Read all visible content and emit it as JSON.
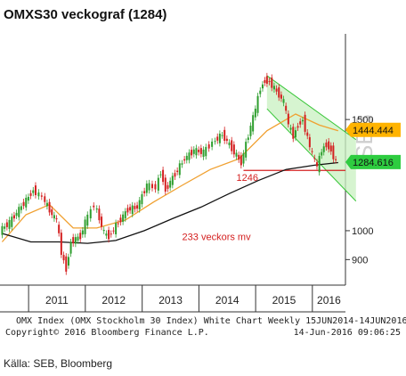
{
  "title": "OMXS30 veckograf (1284)",
  "source": "Källa: SEB, Bloomberg",
  "chart_data": {
    "type": "line",
    "series_name": "OMXS30",
    "x_tick_labels": [
      "2011",
      "2012",
      "2013",
      "2014",
      "2015",
      "2016"
    ],
    "y_tick_labels": [
      "900",
      "1000",
      "1500"
    ],
    "y_scale": "log",
    "ylim": [
      820,
      2050
    ],
    "grid": false,
    "price": [
      [
        "2010-07",
        1000
      ],
      [
        "2010-09",
        1030
      ],
      [
        "2010-11",
        1080
      ],
      [
        "2011-01",
        1130
      ],
      [
        "2011-02",
        1160
      ],
      [
        "2011-04",
        1130
      ],
      [
        "2011-06",
        1060
      ],
      [
        "2011-07",
        1040
      ],
      [
        "2011-08",
        920
      ],
      [
        "2011-09",
        870
      ],
      [
        "2011-10",
        960
      ],
      [
        "2011-12",
        980
      ],
      [
        "2012-01",
        1030
      ],
      [
        "2012-03",
        1100
      ],
      [
        "2012-05",
        990
      ],
      [
        "2012-06",
        980
      ],
      [
        "2012-08",
        1030
      ],
      [
        "2012-10",
        1080
      ],
      [
        "2012-12",
        1090
      ],
      [
        "2013-02",
        1180
      ],
      [
        "2013-04",
        1170
      ],
      [
        "2013-05",
        1240
      ],
      [
        "2013-06",
        1160
      ],
      [
        "2013-08",
        1230
      ],
      [
        "2013-10",
        1300
      ],
      [
        "2013-12",
        1340
      ],
      [
        "2014-02",
        1330
      ],
      [
        "2014-04",
        1380
      ],
      [
        "2014-06",
        1420
      ],
      [
        "2014-08",
        1350
      ],
      [
        "2014-10",
        1280
      ],
      [
        "2014-12",
        1460
      ],
      [
        "2015-01",
        1560
      ],
      [
        "2015-02",
        1680
      ],
      [
        "2015-03",
        1730
      ],
      [
        "2015-04",
        1720
      ],
      [
        "2015-06",
        1640
      ],
      [
        "2015-07",
        1600
      ],
      [
        "2015-08",
        1470
      ],
      [
        "2015-09",
        1410
      ],
      [
        "2015-10",
        1470
      ],
      [
        "2015-11",
        1500
      ],
      [
        "2015-12",
        1400
      ],
      [
        "2016-01",
        1320
      ],
      [
        "2016-02",
        1260
      ],
      [
        "2016-03",
        1340
      ],
      [
        "2016-04",
        1370
      ],
      [
        "2016-05",
        1340
      ],
      [
        "2016-06",
        1284
      ]
    ],
    "ma_short": [
      [
        "2010-07",
        960
      ],
      [
        "2010-12",
        1060
      ],
      [
        "2011-05",
        1100
      ],
      [
        "2011-10",
        1010
      ],
      [
        "2012-03",
        1010
      ],
      [
        "2012-09",
        1040
      ],
      [
        "2013-03",
        1110
      ],
      [
        "2013-09",
        1180
      ],
      [
        "2014-03",
        1250
      ],
      [
        "2014-09",
        1300
      ],
      [
        "2015-03",
        1440
      ],
      [
        "2015-09",
        1530
      ],
      [
        "2016-02",
        1470
      ],
      [
        "2016-06",
        1440
      ]
    ],
    "ma_233": [
      [
        "2010-07",
        990
      ],
      [
        "2011-01",
        960
      ],
      [
        "2011-07",
        960
      ],
      [
        "2012-01",
        955
      ],
      [
        "2012-07",
        965
      ],
      [
        "2013-01",
        1000
      ],
      [
        "2013-07",
        1045
      ],
      [
        "2014-01",
        1090
      ],
      [
        "2014-07",
        1145
      ],
      [
        "2015-01",
        1200
      ],
      [
        "2015-07",
        1250
      ],
      [
        "2016-01",
        1270
      ],
      [
        "2016-06",
        1282
      ]
    ],
    "channel": [
      [
        "2015-03",
        1760
      ],
      [
        "2016-06",
        1440
      ],
      [
        "2015-03",
        1560
      ],
      [
        "2016-06",
        1220
      ]
    ],
    "support_line": [
      [
        "2014-10",
        1246
      ],
      [
        "2016-06",
        1246
      ]
    ],
    "annotations": [
      {
        "text": "1246"
      },
      {
        "text": "233 veckors mv"
      }
    ],
    "price_tags": [
      {
        "text": "1444.444",
        "color": "#ffb300"
      },
      {
        "text": "1284.616",
        "color": "#2ecc40"
      }
    ],
    "footer_line1": "OMX Index (OMX Stockholm 30 Index) White Chart  Weekly 15JUN2014-14JUN2016",
    "footer_line2_left": "Copyright© 2016 Bloomberg Finance L.P.",
    "footer_line2_right": "14-Jun-2016 09:06:25",
    "watermark": "SEB",
    "colors": {
      "price_up": "#2e9e2e",
      "price_down": "#d42020",
      "ma_short": "#f0a030",
      "ma_233": "#111111",
      "channel_fill": "#c8f0c0",
      "channel_line": "#39c639",
      "support": "#d42020"
    }
  }
}
